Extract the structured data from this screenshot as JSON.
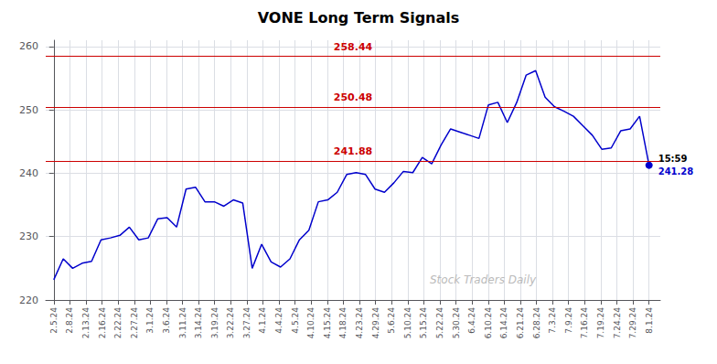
{
  "chart_data": {
    "type": "line",
    "title": "VONE Long Term Signals",
    "color": "#0000cc",
    "x": [
      0,
      0.587302,
      1.174603,
      1.761905,
      2.349206,
      2.936508,
      3.52381,
      4.111111,
      4.698413,
      5.285714,
      5.873016,
      6.460317,
      7.047619,
      7.634921,
      8.222222,
      8.809524,
      9.396825,
      9.984127,
      10.571429,
      11.15873,
      11.746032,
      12.333333,
      12.920635,
      13.507937,
      14.095238,
      14.68254,
      15.269841,
      15.857143,
      16.444444,
      17.031746,
      17.619048,
      18.206349,
      18.793651,
      19.380952,
      19.968254,
      20.555556,
      21.142857,
      21.730159,
      22.31746,
      22.904762,
      23.492063,
      24.079365,
      24.666667,
      25.253968,
      25.84127,
      26.428571,
      27.015873,
      27.603175,
      28.190476,
      28.777778,
      29.365079,
      29.952381,
      30.539683,
      31.126984,
      31.714286,
      32.301587,
      32.888889,
      33.47619,
      34.063492,
      34.650794,
      35.238095,
      35.825397,
      36.412698,
      37
    ],
    "values": [
      223.2,
      226.5,
      225.0,
      225.8,
      226.1,
      229.5,
      229.8,
      230.2,
      231.5,
      229.5,
      229.8,
      232.8,
      233.0,
      231.5,
      237.5,
      237.8,
      235.5,
      235.5,
      234.8,
      235.8,
      235.3,
      225.0,
      228.8,
      226.0,
      225.2,
      226.5,
      229.5,
      231.0,
      235.5,
      235.8,
      237.0,
      239.8,
      240.1,
      239.8,
      237.5,
      237.0,
      238.5,
      240.3,
      240.1,
      242.5,
      241.5,
      244.5,
      247.0,
      246.5,
      246.0,
      245.5,
      250.8,
      251.2,
      248.0,
      251.2,
      255.5,
      256.2,
      252.0,
      250.5,
      249.8,
      249.0,
      247.5,
      246.0,
      243.8,
      244.0,
      246.7,
      247.0,
      249.0,
      241.28
    ],
    "xlim": [
      -0.5,
      37.7
    ],
    "xticks": [
      {
        "value": 0,
        "label": "2.5.24"
      },
      {
        "value": 1,
        "label": "2.8.24"
      },
      {
        "value": 2,
        "label": "2.13.24"
      },
      {
        "value": 3,
        "label": "2.16.24"
      },
      {
        "value": 4,
        "label": "2.22.24"
      },
      {
        "value": 5,
        "label": "2.27.24"
      },
      {
        "value": 6,
        "label": "3.1.24"
      },
      {
        "value": 7,
        "label": "3.6.24"
      },
      {
        "value": 8,
        "label": "3.11.24"
      },
      {
        "value": 9,
        "label": "3.14.24"
      },
      {
        "value": 10,
        "label": "3.19.24"
      },
      {
        "value": 11,
        "label": "3.22.24"
      },
      {
        "value": 12,
        "label": "3.27.24"
      },
      {
        "value": 13,
        "label": "4.1.24"
      },
      {
        "value": 14,
        "label": "4.4.24"
      },
      {
        "value": 15,
        "label": "4.5.24"
      },
      {
        "value": 16,
        "label": "4.10.24"
      },
      {
        "value": 17,
        "label": "4.15.24"
      },
      {
        "value": 18,
        "label": "4.18.24"
      },
      {
        "value": 19,
        "label": "4.23.24"
      },
      {
        "value": 20,
        "label": "4.29.24"
      },
      {
        "value": 21,
        "label": "5.6.24"
      },
      {
        "value": 22,
        "label": "5.10.24"
      },
      {
        "value": 23,
        "label": "5.15.24"
      },
      {
        "value": 24,
        "label": "5.22.24"
      },
      {
        "value": 25,
        "label": "5.30.24"
      },
      {
        "value": 26,
        "label": "6.4.24"
      },
      {
        "value": 27,
        "label": "6.10.24"
      },
      {
        "value": 28,
        "label": "6.14.24"
      },
      {
        "value": 29,
        "label": "6.21.24"
      },
      {
        "value": 30,
        "label": "6.28.24"
      },
      {
        "value": 31,
        "label": "7.3.24"
      },
      {
        "value": 32,
        "label": "7.9.24"
      },
      {
        "value": 33,
        "label": "7.16.24"
      },
      {
        "value": 34,
        "label": "7.19.24"
      },
      {
        "value": 35,
        "label": "7.24.24"
      },
      {
        "value": 36,
        "label": "7.29.24"
      },
      {
        "value": 37,
        "label": "8.1.24"
      }
    ],
    "ylim": [
      220,
      261
    ],
    "yticks": [
      220,
      230,
      240,
      250,
      260
    ],
    "grid": true,
    "hlines": [
      {
        "y": 258.44,
        "label": "258.44",
        "color": "#cc0000"
      },
      {
        "y": 250.48,
        "label": "250.48",
        "color": "#cc0000"
      },
      {
        "y": 241.88,
        "label": "241.88",
        "color": "#cc0000"
      }
    ],
    "annotations": [
      {
        "text": "15:59",
        "color": "#000000"
      },
      {
        "text": "241.28",
        "color": "#0000cc"
      }
    ],
    "watermark": "Stock Traders Daily"
  }
}
